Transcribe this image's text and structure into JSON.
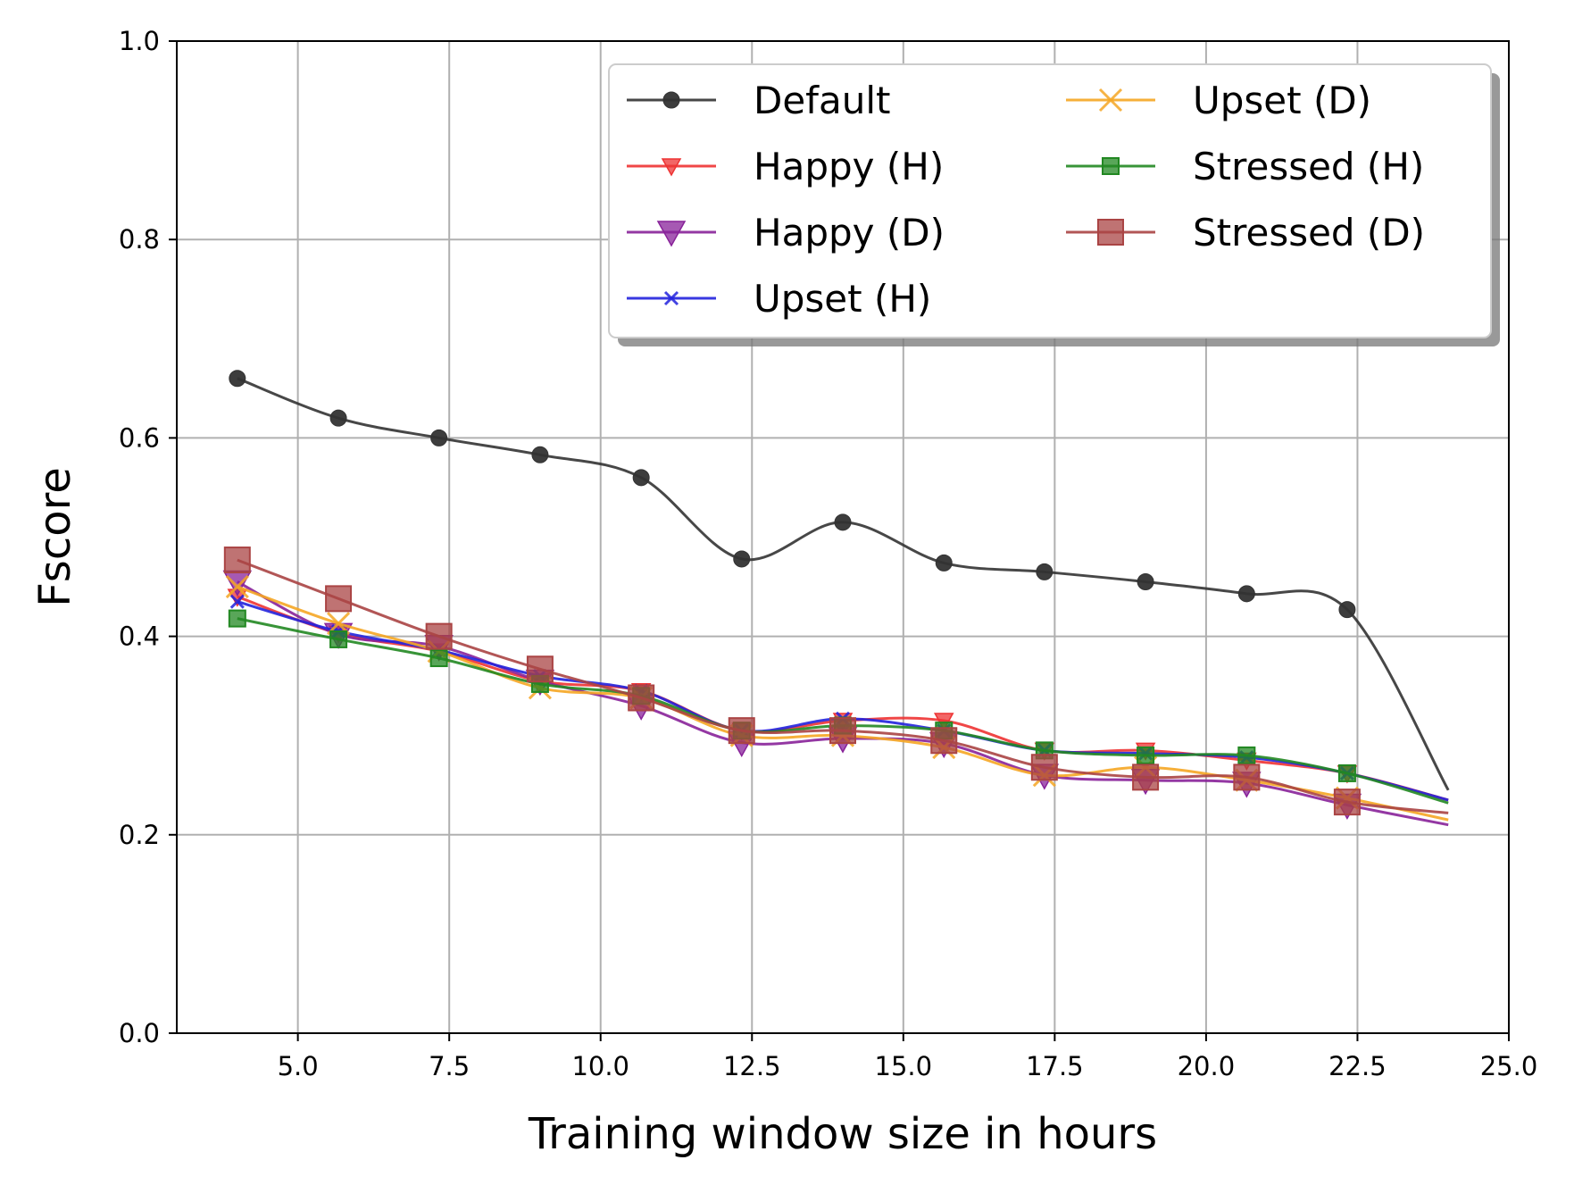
{
  "chart_data": {
    "type": "line",
    "title": "",
    "xlabel": "Training window size in hours",
    "ylabel": "Fscore",
    "xlim": [
      3.0,
      25.0
    ],
    "ylim": [
      0.0,
      1.0
    ],
    "grid": true,
    "legend_position": "top-right",
    "x_ticks": [
      5.0,
      7.5,
      10.0,
      12.5,
      15.0,
      17.5,
      20.0,
      22.5,
      25.0
    ],
    "x_tick_labels": [
      "5.0",
      "7.5",
      "10.0",
      "12.5",
      "15.0",
      "17.5",
      "20.0",
      "22.5",
      "25.0"
    ],
    "y_ticks": [
      0.0,
      0.2,
      0.4,
      0.6,
      0.8,
      1.0
    ],
    "y_tick_labels": [
      "0.0",
      "0.2",
      "0.4",
      "0.6",
      "0.8",
      "1.0"
    ],
    "x": [
      4.0,
      5.67,
      7.33,
      9.0,
      10.67,
      12.33,
      14.0,
      15.67,
      17.33,
      19.0,
      20.67,
      22.33,
      24.0
    ],
    "series": [
      {
        "name": "Default",
        "color": "#333333",
        "marker": "circle",
        "values": [
          0.66,
          0.62,
          0.6,
          0.583,
          0.56,
          0.478,
          0.515,
          0.474,
          0.465,
          0.455,
          0.443,
          0.427,
          0.245
        ]
      },
      {
        "name": "Happy (H)",
        "color": "#ee3333",
        "marker": "triangle-down-small",
        "values": [
          0.44,
          0.403,
          0.385,
          0.355,
          0.345,
          0.305,
          0.315,
          0.315,
          0.285,
          0.285,
          0.275,
          0.262,
          0.235
        ]
      },
      {
        "name": "Happy (D)",
        "color": "#882299",
        "marker": "triangle-down",
        "values": [
          0.455,
          0.402,
          0.39,
          0.355,
          0.33,
          0.293,
          0.297,
          0.292,
          0.26,
          0.255,
          0.252,
          0.23,
          0.21
        ]
      },
      {
        "name": "Upset (H)",
        "color": "#2222dd",
        "marker": "x",
        "values": [
          0.435,
          0.405,
          0.386,
          0.36,
          0.345,
          0.305,
          0.317,
          0.305,
          0.285,
          0.282,
          0.278,
          0.262,
          0.235
        ]
      },
      {
        "name": "Upset (D)",
        "color": "#f5a623",
        "marker": "x-large",
        "values": [
          0.45,
          0.413,
          0.385,
          0.348,
          0.338,
          0.3,
          0.3,
          0.288,
          0.26,
          0.268,
          0.255,
          0.237,
          0.215
        ]
      },
      {
        "name": "Stressed (H)",
        "color": "#228822",
        "marker": "square-small",
        "values": [
          0.418,
          0.397,
          0.378,
          0.352,
          0.34,
          0.305,
          0.31,
          0.305,
          0.285,
          0.28,
          0.28,
          0.262,
          0.232
        ]
      },
      {
        "name": "Stressed (D)",
        "color": "#aa4444",
        "marker": "square",
        "values": [
          0.477,
          0.438,
          0.4,
          0.367,
          0.338,
          0.305,
          0.305,
          0.295,
          0.268,
          0.258,
          0.258,
          0.233,
          0.222
        ]
      }
    ]
  }
}
